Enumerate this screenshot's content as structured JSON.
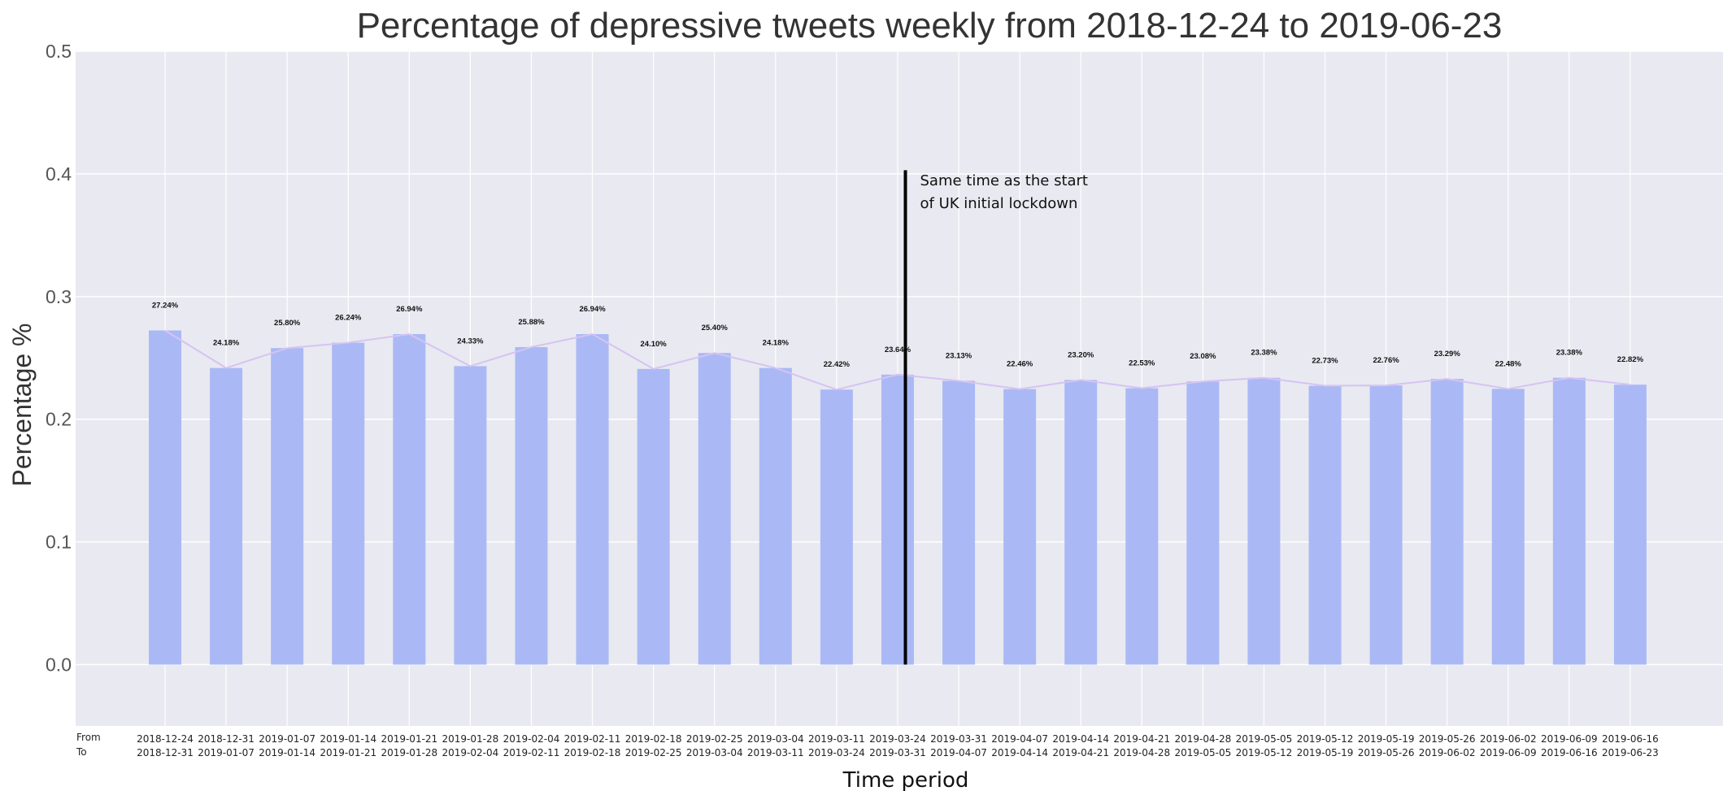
{
  "chart_data": {
    "type": "bar",
    "title": "Percentage of depressive tweets weekly from 2018-12-24 to 2019-06-23",
    "xlabel": "Time period",
    "ylabel": "Percentage %",
    "ylim": [
      -0.05,
      0.5
    ],
    "yticks": [
      "0.0",
      "0.1",
      "0.2",
      "0.3",
      "0.4",
      "0.5"
    ],
    "tick_row_labels": [
      "From",
      "To"
    ],
    "categories_from": [
      "2018-12-24",
      "2018-12-31",
      "2019-01-07",
      "2019-01-14",
      "2019-01-21",
      "2019-01-28",
      "2019-02-04",
      "2019-02-11",
      "2019-02-18",
      "2019-02-25",
      "2019-03-04",
      "2019-03-11",
      "2019-03-24",
      "2019-03-31",
      "2019-04-07",
      "2019-04-14",
      "2019-04-21",
      "2019-04-28",
      "2019-05-05",
      "2019-05-12",
      "2019-05-19",
      "2019-05-26",
      "2019-06-02",
      "2019-06-09",
      "2019-06-16"
    ],
    "categories_to": [
      "2018-12-31",
      "2019-01-07",
      "2019-01-14",
      "2019-01-21",
      "2019-01-28",
      "2019-02-04",
      "2019-02-11",
      "2019-02-18",
      "2019-02-25",
      "2019-03-04",
      "2019-03-11",
      "2019-03-24",
      "2019-03-31",
      "2019-04-07",
      "2019-04-14",
      "2019-04-21",
      "2019-04-28",
      "2019-05-05",
      "2019-05-12",
      "2019-05-19",
      "2019-05-26",
      "2019-06-02",
      "2019-06-09",
      "2019-06-16",
      "2019-06-23"
    ],
    "values": [
      0.2724,
      0.2418,
      0.258,
      0.2624,
      0.2694,
      0.2433,
      0.2588,
      0.2694,
      0.241,
      0.254,
      0.2418,
      0.2242,
      0.2364,
      0.2313,
      0.2246,
      0.232,
      0.2253,
      0.2308,
      0.2338,
      0.2273,
      0.2276,
      0.2329,
      0.2248,
      0.2338,
      0.2282
    ],
    "value_labels": [
      "27.24%",
      "24.18%",
      "25.80%",
      "26.24%",
      "26.94%",
      "24.33%",
      "25.88%",
      "26.94%",
      "24.10%",
      "25.40%",
      "24.18%",
      "22.42%",
      "23.64%",
      "23.13%",
      "22.46%",
      "23.20%",
      "22.53%",
      "23.08%",
      "23.38%",
      "22.73%",
      "22.76%",
      "23.29%",
      "22.48%",
      "23.38%",
      "22.82%"
    ],
    "annotation": {
      "lines": [
        "Same time as the start",
        "of UK initial lockdown"
      ],
      "after_bar_index": 12,
      "y_top": 0.403
    },
    "grid": true,
    "colors": {
      "bar": "#aab9f5",
      "line": "#d6c3f2",
      "background": "#e9e9f1",
      "grid": "#ffffff",
      "marker_line": "#000000"
    }
  }
}
